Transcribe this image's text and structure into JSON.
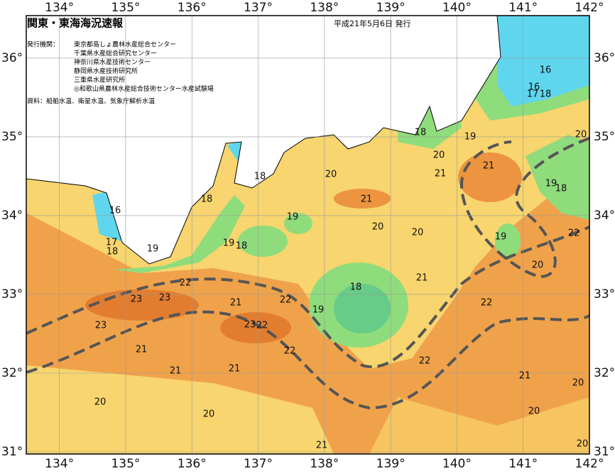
{
  "header": {
    "title": "関東・東海海況速報",
    "date": "平成21年5月6日 発行"
  },
  "issuers": {
    "label": "発行機関：",
    "items": [
      "東京都島しょ農林水産総合センター",
      "千葉県水産総合研究センター",
      "神奈川県水産技術センター",
      "静岡県水産技術研究所",
      "三重県水産研究所",
      "◎和歌山県農林水産総合技術センター水産試験場"
    ]
  },
  "source": "資料：船舶水温、衛星水温、気象庁解析水温",
  "map": {
    "xlim": [
      133.5,
      142.0
    ],
    "ylim": [
      31.0,
      36.54
    ],
    "xticks": [
      {
        "value": 134,
        "label": "134°"
      },
      {
        "value": 135,
        "label": "135°"
      },
      {
        "value": 136,
        "label": "136°"
      },
      {
        "value": 137,
        "label": "137°"
      },
      {
        "value": 138,
        "label": "138°"
      },
      {
        "value": 139,
        "label": "139°"
      },
      {
        "value": 140,
        "label": "140°"
      },
      {
        "value": 141,
        "label": "141°"
      },
      {
        "value": 142,
        "label": "142°"
      }
    ],
    "yticks": [
      {
        "value": 31,
        "label": "31°"
      },
      {
        "value": 32,
        "label": "32°"
      },
      {
        "value": 33,
        "label": "33°"
      },
      {
        "value": 34,
        "label": "34°"
      },
      {
        "value": 35,
        "label": "35°"
      },
      {
        "value": 36,
        "label": "36°"
      }
    ],
    "contour_labels": [
      16,
      17,
      18,
      19,
      18,
      18,
      20,
      19,
      19,
      18,
      18,
      19,
      20,
      21,
      21,
      16,
      16,
      17,
      18,
      20,
      19,
      18,
      22,
      21,
      20,
      20,
      19,
      20,
      21,
      22,
      23,
      23,
      21,
      22,
      19,
      18,
      22,
      23,
      23,
      22,
      21,
      22,
      22,
      21,
      21,
      21,
      20,
      20,
      20,
      20,
      21,
      20
    ]
  }
}
